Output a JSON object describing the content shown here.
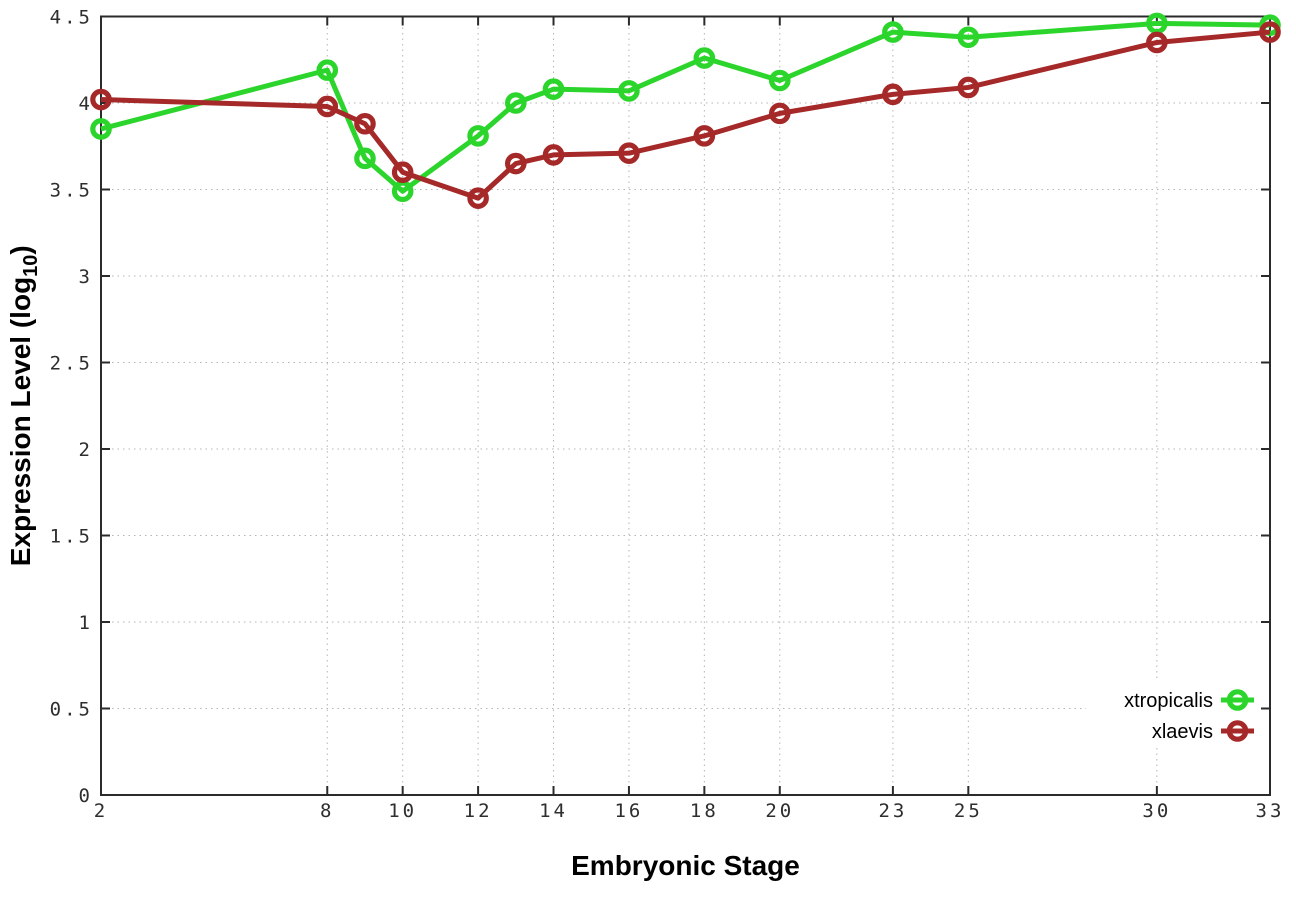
{
  "chart_data": {
    "type": "line",
    "title": "",
    "xlabel": "Embryonic Stage",
    "ylabel": "Expression Level (log10)",
    "ylabel_parts": {
      "prefix": "Expression Level (log",
      "subscript": "10",
      "suffix": ")"
    },
    "xlim": [
      2,
      33
    ],
    "ylim": [
      0,
      4.5
    ],
    "grid": true,
    "legend_position": "inside-right-lower",
    "axis_color": "#2b2b2b",
    "grid_color": "#b5b5b5",
    "background_color": "#ffffff",
    "xticks": [
      {
        "v": 2,
        "label": "2"
      },
      {
        "v": 8,
        "label": "8"
      },
      {
        "v": 10,
        "label": "10"
      },
      {
        "v": 12,
        "label": "12"
      },
      {
        "v": 14,
        "label": "14"
      },
      {
        "v": 16,
        "label": "16"
      },
      {
        "v": 18,
        "label": "18"
      },
      {
        "v": 20,
        "label": "20"
      },
      {
        "v": 23,
        "label": "23"
      },
      {
        "v": 25,
        "label": "25"
      },
      {
        "v": 30,
        "label": "30"
      },
      {
        "v": 33,
        "label": "33"
      }
    ],
    "yticks": [
      {
        "v": 0,
        "label": "0"
      },
      {
        "v": 0.5,
        "label": "0.5"
      },
      {
        "v": 1,
        "label": "1"
      },
      {
        "v": 1.5,
        "label": "1.5"
      },
      {
        "v": 2,
        "label": "2"
      },
      {
        "v": 2.5,
        "label": "2.5"
      },
      {
        "v": 3,
        "label": "3"
      },
      {
        "v": 3.5,
        "label": "3.5"
      },
      {
        "v": 4,
        "label": "4"
      },
      {
        "v": 4.5,
        "label": "4.5"
      }
    ],
    "x": [
      2,
      8,
      9,
      10,
      12,
      13,
      14,
      16,
      18,
      20,
      23,
      25,
      30,
      33
    ],
    "series": [
      {
        "name": "xtropicalis",
        "color": "#2bd52b",
        "values": [
          3.85,
          4.19,
          3.68,
          3.49,
          3.81,
          4.0,
          4.08,
          4.07,
          4.26,
          4.13,
          4.41,
          4.38,
          4.46,
          4.45
        ]
      },
      {
        "name": "xlaevis",
        "color": "#a62929",
        "values": [
          4.02,
          3.98,
          3.88,
          3.6,
          3.45,
          3.65,
          3.7,
          3.71,
          3.81,
          3.94,
          4.05,
          4.09,
          4.35,
          4.41
        ]
      }
    ]
  }
}
